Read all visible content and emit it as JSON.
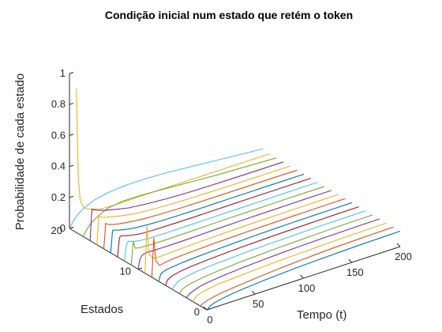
{
  "chart_data": {
    "type": "line",
    "view": "3d",
    "title": "Condição inicial num estado que retém o token",
    "xlabel": "Tempo (t)",
    "ylabel": "Estados",
    "zlabel": "Probabilidade de cada estado",
    "xlim": [
      0,
      200
    ],
    "ylim": [
      0,
      20
    ],
    "zlim": [
      0,
      1
    ],
    "xticks": [
      0,
      50,
      100,
      150,
      200
    ],
    "yticks": [
      0,
      10,
      20
    ],
    "zticks": [
      0,
      0.2,
      0.4,
      0.6,
      0.8,
      1
    ],
    "x_sample": [
      0,
      2,
      4,
      8,
      15,
      25,
      40,
      60,
      80,
      100,
      120,
      140,
      160,
      180,
      200
    ],
    "series": [
      {
        "state": 0,
        "color": "#0072BD",
        "values": [
          0,
          0.01,
          0.02,
          0.03,
          0.04,
          0.05,
          0.06,
          0.07,
          0.078,
          0.084,
          0.089,
          0.093,
          0.096,
          0.098,
          0.1
        ]
      },
      {
        "state": 1,
        "color": "#D95319",
        "values": [
          0,
          0.005,
          0.01,
          0.02,
          0.03,
          0.04,
          0.05,
          0.062,
          0.072,
          0.08,
          0.087,
          0.092,
          0.095,
          0.098,
          0.1
        ]
      },
      {
        "state": 2,
        "color": "#EDB120",
        "values": [
          0,
          0.02,
          0.03,
          0.04,
          0.05,
          0.06,
          0.066,
          0.073,
          0.08,
          0.085,
          0.089,
          0.093,
          0.096,
          0.098,
          0.1
        ]
      },
      {
        "state": 3,
        "color": "#7E2F8E",
        "values": [
          0,
          0.01,
          0.02,
          0.03,
          0.045,
          0.055,
          0.065,
          0.075,
          0.082,
          0.088,
          0.092,
          0.095,
          0.097,
          0.099,
          0.1
        ]
      },
      {
        "state": 4,
        "color": "#77AC30",
        "values": [
          0,
          0.015,
          0.025,
          0.035,
          0.045,
          0.055,
          0.065,
          0.074,
          0.08,
          0.086,
          0.09,
          0.094,
          0.097,
          0.099,
          0.1
        ]
      },
      {
        "state": 5,
        "color": "#4DBEEE",
        "values": [
          0,
          0.02,
          0.03,
          0.045,
          0.055,
          0.065,
          0.073,
          0.08,
          0.086,
          0.09,
          0.093,
          0.096,
          0.098,
          0.099,
          0.1
        ]
      },
      {
        "state": 6,
        "color": "#A2142F",
        "values": [
          0,
          0.03,
          0.04,
          0.05,
          0.06,
          0.068,
          0.075,
          0.082,
          0.087,
          0.091,
          0.094,
          0.096,
          0.098,
          0.099,
          0.1
        ]
      },
      {
        "state": 7,
        "color": "#0072BD",
        "values": [
          0,
          0.04,
          0.05,
          0.06,
          0.065,
          0.072,
          0.078,
          0.084,
          0.088,
          0.092,
          0.095,
          0.097,
          0.098,
          0.099,
          0.1
        ]
      },
      {
        "state": 8,
        "color": "#D95319",
        "values": [
          0,
          0.25,
          0.1,
          0.06,
          0.07,
          0.076,
          0.081,
          0.086,
          0.09,
          0.093,
          0.095,
          0.097,
          0.098,
          0.099,
          0.1
        ]
      },
      {
        "state": 9,
        "color": "#EDB120",
        "values": [
          0,
          0.3,
          0.12,
          0.08,
          0.075,
          0.079,
          0.083,
          0.088,
          0.091,
          0.094,
          0.096,
          0.097,
          0.098,
          0.099,
          0.1
        ]
      },
      {
        "state": 10,
        "color": "#7E2F8E",
        "values": [
          0,
          0.06,
          0.08,
          0.09,
          0.088,
          0.087,
          0.088,
          0.09,
          0.093,
          0.095,
          0.097,
          0.098,
          0.099,
          0.1,
          0.1
        ]
      },
      {
        "state": 11,
        "color": "#77AC30",
        "values": [
          0,
          0.15,
          0.1,
          0.095,
          0.092,
          0.09,
          0.09,
          0.092,
          0.094,
          0.096,
          0.097,
          0.098,
          0.099,
          0.1,
          0.1
        ]
      },
      {
        "state": 12,
        "color": "#4DBEEE",
        "values": [
          0,
          0.1,
          0.12,
          0.11,
          0.1,
          0.095,
          0.093,
          0.094,
          0.095,
          0.096,
          0.097,
          0.098,
          0.099,
          0.1,
          0.1
        ]
      },
      {
        "state": 13,
        "color": "#A2142F",
        "values": [
          0,
          0.12,
          0.13,
          0.12,
          0.11,
          0.1,
          0.097,
          0.096,
          0.096,
          0.097,
          0.098,
          0.099,
          0.099,
          0.1,
          0.1
        ]
      },
      {
        "state": 14,
        "color": "#0072BD",
        "values": [
          0,
          0.14,
          0.14,
          0.13,
          0.12,
          0.11,
          0.103,
          0.099,
          0.098,
          0.098,
          0.099,
          0.099,
          0.1,
          0.1,
          0.1
        ]
      },
      {
        "state": 15,
        "color": "#D95319",
        "values": [
          0,
          0.16,
          0.15,
          0.14,
          0.13,
          0.12,
          0.11,
          0.104,
          0.101,
          0.1,
          0.1,
          0.1,
          0.1,
          0.1,
          0.1
        ]
      },
      {
        "state": 16,
        "color": "#EDB120",
        "values": [
          0,
          0.18,
          0.17,
          0.16,
          0.15,
          0.135,
          0.12,
          0.11,
          0.105,
          0.102,
          0.101,
          0.1,
          0.1,
          0.1,
          0.1
        ]
      },
      {
        "state": 17,
        "color": "#7E2F8E",
        "values": [
          0,
          0.2,
          0.19,
          0.18,
          0.165,
          0.15,
          0.13,
          0.117,
          0.109,
          0.104,
          0.102,
          0.101,
          0.1,
          0.1,
          0.1
        ]
      },
      {
        "state": 18,
        "color": "#77AC30",
        "values": [
          0,
          0.02,
          0.04,
          0.07,
          0.1,
          0.13,
          0.145,
          0.145,
          0.138,
          0.13,
          0.122,
          0.115,
          0.11,
          0.105,
          0.1
        ]
      },
      {
        "state": 19,
        "color": "#EDB120",
        "values": [
          0.93,
          0.35,
          0.2,
          0.14,
          0.12,
          0.1,
          0.097,
          0.098,
          0.099,
          0.1,
          0.1,
          0.1,
          0.1,
          0.1,
          0.1
        ]
      },
      {
        "state": 20,
        "color": "#4DBEEE",
        "values": [
          0,
          0.02,
          0.04,
          0.07,
          0.1,
          0.13,
          0.15,
          0.16,
          0.16,
          0.155,
          0.145,
          0.135,
          0.125,
          0.115,
          0.105
        ]
      }
    ]
  }
}
